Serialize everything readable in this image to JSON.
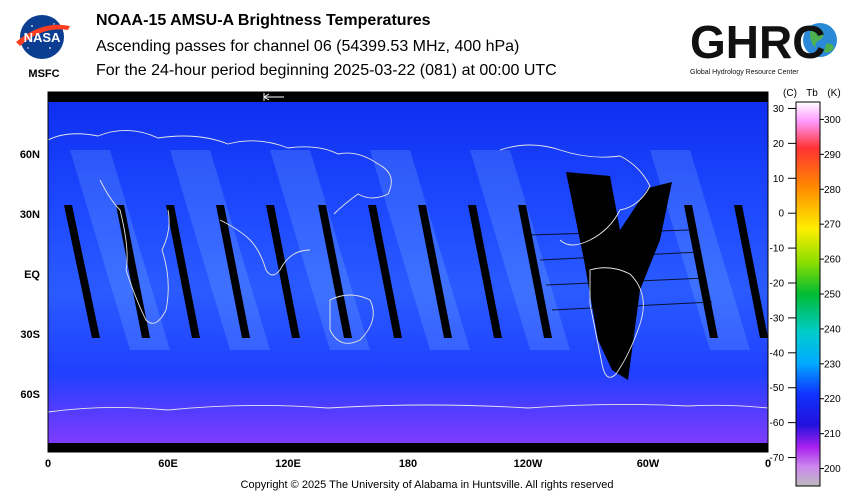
{
  "header": {
    "title": "NOAA-15 AMSU-A Brightness Temperatures",
    "subtitle": "Ascending passes for channel 06 (54399.53 MHz, 400 hPa)",
    "period": "For the 24-hour period beginning 2025-03-22 (081) at 00:00 UTC"
  },
  "logos": {
    "nasa": "NASA",
    "msfc": "MSFC",
    "ghrc": "GHRC",
    "ghrc_full": "Global Hydrology Resource Center"
  },
  "map": {
    "lat_labels": [
      "60N",
      "30N",
      "EQ",
      "30S",
      "60S"
    ],
    "lon_labels": [
      "0",
      "60E",
      "120E",
      "180",
      "120W",
      "60W",
      "0"
    ],
    "colors": {
      "ocean": "#1a35ff",
      "deep": "#0a14e0",
      "polar_south": "#8a3cff",
      "swath_gap": "#000000",
      "coastline": "#e6e6e6"
    }
  },
  "colorbar": {
    "header_c": "(C)",
    "header_tb": "Tb",
    "header_k": "(K)",
    "celsius_ticks": [
      "30",
      "20",
      "10",
      "0",
      "-10",
      "-20",
      "-30",
      "-40",
      "-50",
      "-60",
      "-70"
    ],
    "kelvin_ticks": [
      "300",
      "290",
      "280",
      "270",
      "260",
      "250",
      "240",
      "230",
      "220",
      "210",
      "200"
    ],
    "range_k": [
      195,
      305
    ]
  },
  "footer": {
    "copyright": "Copyright © 2025 The University of Alabama in Huntsville.  All rights reserved"
  }
}
